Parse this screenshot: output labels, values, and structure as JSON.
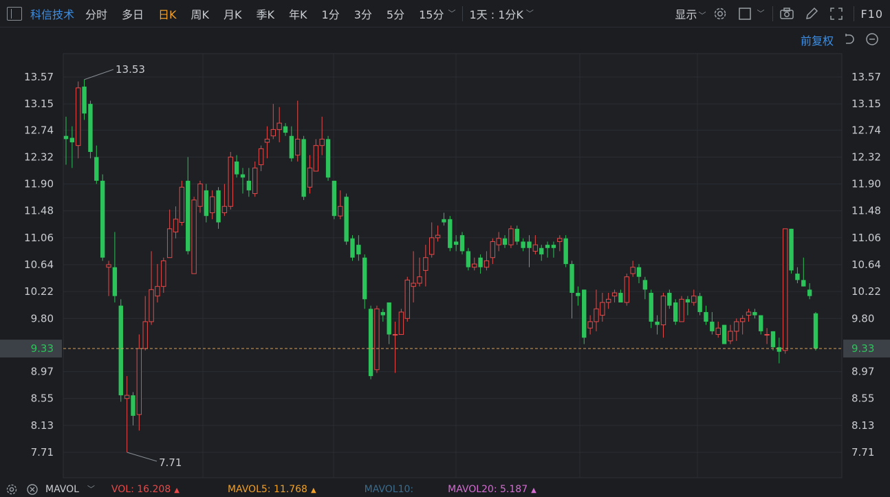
{
  "toolbar": {
    "stock_name": "科信技术",
    "periods": [
      "分时",
      "多日",
      "日K",
      "周K",
      "月K",
      "季K",
      "年K",
      "1分",
      "3分",
      "5分",
      "15分"
    ],
    "active_period": "日K",
    "range_label": "1天 : 1分K",
    "display_label": "显示",
    "f10_label": "F10"
  },
  "adjust_label": "前复权",
  "price_axis": {
    "ticks": [
      "13.57",
      "13.15",
      "12.74",
      "12.32",
      "11.90",
      "11.48",
      "11.06",
      "10.64",
      "10.22",
      "9.80",
      "9.33",
      "8.97",
      "8.55",
      "8.13",
      "7.71"
    ],
    "current_price": "9.33"
  },
  "annotations": {
    "high_label": "13.53",
    "low_label": "7.71"
  },
  "indicator": {
    "name": "MAVOL",
    "vol_label": "VOL:",
    "vol_value": "16.208",
    "mavol5_label": "MAVOL5:",
    "mavol5_value": "11.768",
    "mavol10_label": "MAVOL10:",
    "mavol10_value": "",
    "mavol20_label": "MAVOL20:",
    "mavol20_value": "5.187",
    "arrow": "▲"
  },
  "colors": {
    "up": "#e84a4a",
    "down": "#2cc45a",
    "accent_blue": "#3d8fe6",
    "active_orange": "#f0a028",
    "mavol5": "#f0a028",
    "mavol10": "#3a6c8e",
    "mavol20": "#d36dd0",
    "current_line": "#d8a25a"
  },
  "chart_data": {
    "type": "candlestick",
    "y_ticks": [
      13.57,
      13.15,
      12.74,
      12.32,
      11.9,
      11.48,
      11.06,
      10.64,
      10.22,
      9.8,
      8.97,
      8.55,
      8.13,
      7.71
    ],
    "current_price": 9.33,
    "high": 13.53,
    "low": 7.71,
    "candles": [
      [
        12.65,
        12.6,
        12.95,
        12.2
      ],
      [
        12.62,
        12.55,
        12.8,
        12.15
      ],
      [
        12.5,
        13.4,
        13.5,
        12.3
      ],
      [
        13.42,
        13.0,
        13.53,
        12.9
      ],
      [
        13.15,
        12.4,
        13.2,
        12.3
      ],
      [
        12.32,
        11.95,
        12.5,
        11.9
      ],
      [
        11.95,
        10.75,
        12.05,
        10.7
      ],
      [
        10.6,
        10.64,
        10.7,
        10.15
      ],
      [
        10.6,
        10.15,
        11.15,
        10.05
      ],
      [
        10.0,
        8.6,
        10.1,
        8.5
      ],
      [
        8.55,
        8.6,
        8.9,
        7.71
      ],
      [
        8.6,
        8.28,
        8.65,
        8.13
      ],
      [
        8.3,
        9.33,
        9.55,
        8.05
      ],
      [
        9.33,
        9.75,
        10.15,
        9.3
      ],
      [
        9.75,
        10.25,
        10.85,
        9.7
      ],
      [
        10.15,
        10.3,
        10.65,
        10.05
      ],
      [
        10.3,
        10.7,
        10.75,
        10.2
      ],
      [
        10.75,
        11.2,
        11.5,
        10.75
      ],
      [
        11.15,
        11.35,
        11.55,
        11.05
      ],
      [
        11.3,
        11.85,
        11.95,
        11.25
      ],
      [
        11.95,
        10.85,
        12.32,
        10.8
      ],
      [
        10.5,
        11.65,
        11.7,
        10.5
      ],
      [
        11.55,
        11.9,
        11.95,
        11.45
      ],
      [
        11.8,
        11.4,
        11.9,
        11.3
      ],
      [
        11.45,
        11.7,
        11.8,
        11.35
      ],
      [
        11.8,
        11.3,
        11.85,
        11.2
      ],
      [
        11.45,
        11.55,
        11.9,
        11.4
      ],
      [
        11.55,
        12.32,
        12.4,
        11.5
      ],
      [
        12.25,
        12.05,
        12.35,
        12.0
      ],
      [
        12.05,
        12.0,
        12.15,
        11.75
      ],
      [
        11.95,
        11.8,
        12.15,
        11.7
      ],
      [
        11.75,
        12.15,
        12.25,
        11.7
      ],
      [
        12.2,
        12.45,
        12.5,
        12.1
      ],
      [
        12.55,
        12.6,
        12.8,
        12.3
      ],
      [
        12.65,
        12.75,
        13.15,
        12.6
      ],
      [
        12.75,
        12.85,
        13.1,
        12.55
      ],
      [
        12.8,
        12.7,
        12.85,
        12.65
      ],
      [
        12.65,
        12.3,
        12.8,
        12.25
      ],
      [
        12.35,
        12.6,
        13.2,
        12.25
      ],
      [
        12.6,
        11.7,
        12.65,
        11.65
      ],
      [
        11.85,
        12.15,
        12.35,
        11.75
      ],
      [
        12.1,
        12.5,
        12.6,
        12.1
      ],
      [
        12.5,
        12.6,
        12.95,
        12.35
      ],
      [
        12.6,
        12.0,
        12.65,
        11.95
      ],
      [
        11.95,
        11.4,
        11.95,
        11.35
      ],
      [
        11.4,
        11.55,
        11.8,
        11.35
      ],
      [
        11.7,
        11.0,
        11.75,
        10.95
      ],
      [
        11.05,
        10.75,
        11.1,
        10.7
      ],
      [
        10.95,
        10.8,
        11.1,
        10.7
      ],
      [
        10.75,
        10.1,
        10.8,
        9.95
      ],
      [
        9.95,
        8.9,
        10.0,
        8.85
      ],
      [
        9.0,
        9.95,
        10.0,
        8.95
      ],
      [
        9.9,
        9.85,
        9.95,
        9.75
      ],
      [
        10.05,
        9.55,
        10.05,
        9.4
      ],
      [
        9.55,
        9.55,
        9.75,
        8.95
      ],
      [
        9.55,
        9.9,
        9.95,
        9.55
      ],
      [
        9.8,
        10.4,
        10.45,
        9.75
      ],
      [
        10.3,
        10.35,
        10.85,
        10.05
      ],
      [
        10.35,
        10.45,
        10.75,
        10.3
      ],
      [
        10.55,
        10.75,
        10.95,
        10.3
      ],
      [
        10.8,
        11.06,
        11.3,
        10.75
      ],
      [
        11.06,
        11.1,
        11.25,
        11.0
      ],
      [
        11.35,
        11.3,
        11.45,
        11.25
      ],
      [
        11.35,
        10.9,
        11.4,
        10.85
      ],
      [
        11.0,
        10.95,
        11.1,
        10.85
      ],
      [
        11.1,
        10.85,
        11.15,
        10.8
      ],
      [
        10.85,
        10.6,
        10.9,
        10.55
      ],
      [
        10.6,
        10.65,
        10.75,
        10.55
      ],
      [
        10.75,
        10.6,
        10.8,
        10.5
      ],
      [
        10.6,
        10.7,
        10.85,
        10.55
      ],
      [
        10.75,
        11.0,
        11.05,
        10.65
      ],
      [
        10.95,
        11.05,
        11.15,
        10.85
      ],
      [
        11.05,
        10.95,
        11.1,
        10.9
      ],
      [
        10.95,
        11.2,
        11.25,
        10.9
      ],
      [
        11.2,
        11.0,
        11.25,
        10.95
      ],
      [
        11.0,
        10.9,
        11.05,
        10.85
      ],
      [
        11.0,
        10.9,
        11.1,
        10.6
      ],
      [
        10.85,
        10.95,
        11.1,
        10.8
      ],
      [
        10.9,
        10.8,
        10.95,
        10.7
      ],
      [
        10.95,
        10.9,
        11.0,
        10.75
      ],
      [
        10.95,
        10.9,
        11.0,
        10.75
      ],
      [
        11.0,
        11.05,
        11.1,
        10.85
      ],
      [
        11.05,
        10.65,
        11.1,
        10.6
      ],
      [
        10.65,
        10.2,
        10.7,
        9.8
      ],
      [
        10.2,
        10.15,
        10.3,
        10.0
      ],
      [
        10.25,
        9.5,
        10.25,
        9.4
      ],
      [
        9.65,
        9.75,
        9.85,
        9.55
      ],
      [
        9.75,
        9.95,
        10.25,
        9.6
      ],
      [
        9.85,
        10.05,
        10.2,
        9.75
      ],
      [
        10.05,
        10.1,
        10.2,
        9.95
      ],
      [
        10.15,
        10.2,
        10.25,
        10.05
      ],
      [
        10.2,
        10.05,
        10.25,
        10.05
      ],
      [
        10.05,
        10.45,
        10.5,
        10.0
      ],
      [
        10.5,
        10.6,
        10.7,
        10.45
      ],
      [
        10.6,
        10.45,
        10.65,
        10.35
      ],
      [
        10.4,
        10.25,
        10.45,
        10.1
      ],
      [
        10.2,
        9.75,
        10.25,
        9.65
      ],
      [
        9.75,
        9.7,
        9.85,
        9.55
      ],
      [
        9.7,
        10.15,
        10.2,
        9.5
      ],
      [
        10.2,
        10.0,
        10.25,
        9.95
      ],
      [
        10.05,
        9.75,
        10.1,
        9.7
      ],
      [
        9.75,
        10.1,
        10.15,
        9.75
      ],
      [
        10.1,
        10.05,
        10.15,
        9.85
      ],
      [
        10.05,
        10.15,
        10.25,
        10.0
      ],
      [
        10.15,
        9.9,
        10.2,
        9.85
      ],
      [
        9.9,
        9.75,
        10.0,
        9.7
      ],
      [
        9.75,
        9.6,
        9.9,
        9.55
      ],
      [
        9.55,
        9.65,
        9.75,
        9.5
      ],
      [
        9.7,
        9.4,
        9.7,
        9.45
      ],
      [
        9.45,
        9.6,
        9.7,
        9.4
      ],
      [
        9.6,
        9.75,
        9.8,
        9.45
      ],
      [
        9.75,
        9.8,
        9.85,
        9.55
      ],
      [
        9.85,
        9.9,
        9.95,
        9.75
      ],
      [
        9.9,
        9.85,
        9.95,
        9.8
      ],
      [
        9.85,
        9.6,
        9.85,
        9.55
      ],
      [
        9.55,
        9.55,
        9.65,
        9.4
      ],
      [
        9.6,
        9.35,
        9.6,
        9.3
      ],
      [
        9.35,
        9.28,
        9.5,
        9.1
      ],
      [
        9.3,
        11.2,
        11.2,
        9.25
      ],
      [
        11.2,
        10.55,
        11.2,
        10.5
      ],
      [
        10.5,
        10.4,
        10.6,
        10.35
      ],
      [
        10.4,
        10.3,
        10.75,
        10.3
      ],
      [
        10.25,
        10.15,
        10.35,
        10.1
      ],
      [
        9.88,
        9.33,
        9.9,
        9.3
      ]
    ]
  }
}
